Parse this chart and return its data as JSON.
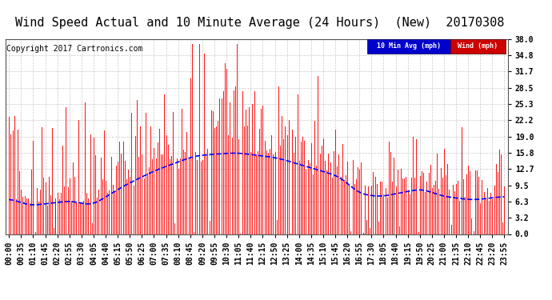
{
  "title": "Wind Speed Actual and 10 Minute Average (24 Hours)  (New)  20170308",
  "copyright": "Copyright 2017 Cartronics.com",
  "legend_avg_label": "10 Min Avg (mph)",
  "legend_wind_label": "Wind (mph)",
  "yticks": [
    0.0,
    3.2,
    6.3,
    9.5,
    12.7,
    15.8,
    19.0,
    22.2,
    25.3,
    28.5,
    31.7,
    34.8,
    38.0
  ],
  "ymin": 0.0,
  "ymax": 38.0,
  "background_color": "#ffffff",
  "grid_color": "#bbbbbb",
  "wind_color": "#ff0000",
  "avg_color": "#0000ff",
  "dark_color": "#333333",
  "title_fontsize": 11,
  "copyright_fontsize": 7,
  "tick_fontsize": 7,
  "seed": 42,
  "n_points": 288,
  "x_labels": [
    "00:00",
    "00:35",
    "01:10",
    "01:45",
    "02:20",
    "02:55",
    "03:30",
    "04:05",
    "04:40",
    "05:15",
    "05:50",
    "06:25",
    "07:00",
    "07:35",
    "08:10",
    "08:45",
    "09:20",
    "09:55",
    "10:30",
    "11:05",
    "11:40",
    "12:15",
    "12:50",
    "13:25",
    "14:00",
    "14:35",
    "15:10",
    "15:45",
    "16:20",
    "16:55",
    "17:30",
    "18:05",
    "18:40",
    "19:15",
    "19:50",
    "20:25",
    "21:00",
    "21:35",
    "22:10",
    "22:45",
    "23:20",
    "23:55"
  ]
}
